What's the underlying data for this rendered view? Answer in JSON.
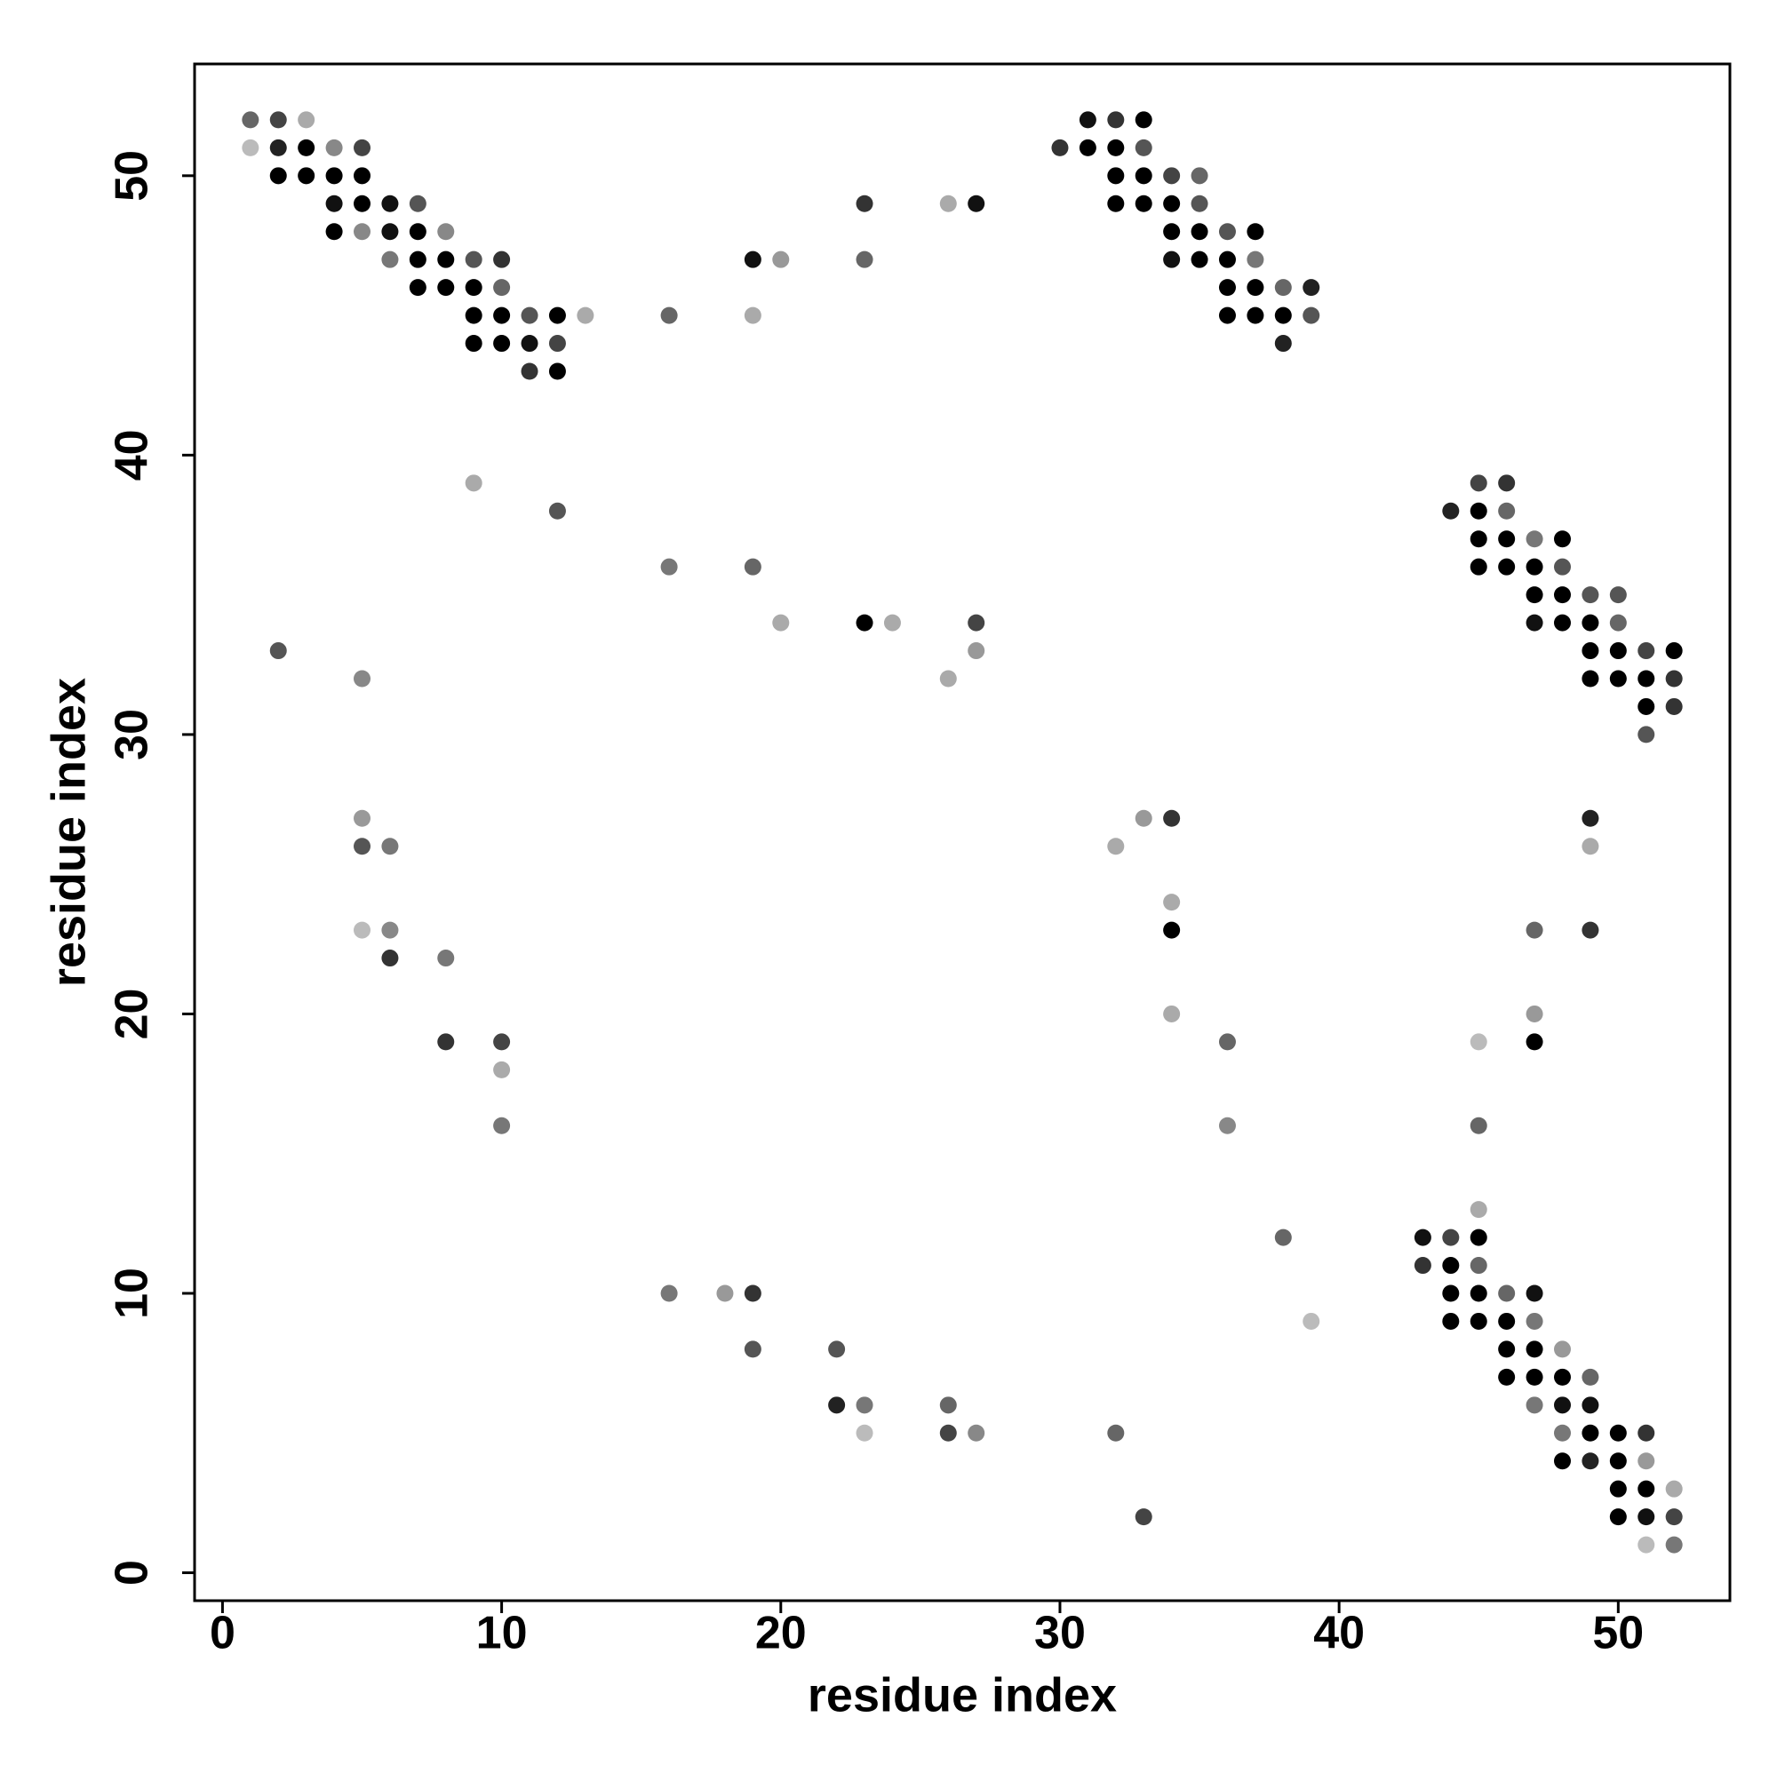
{
  "chart_data": {
    "type": "scatter",
    "xlabel": "residue index",
    "ylabel": "residue index",
    "xlim": [
      -1,
      54
    ],
    "ylim": [
      -1,
      54
    ],
    "xticks": [
      0,
      10,
      20,
      30,
      40,
      50
    ],
    "yticks": [
      0,
      10,
      20,
      30,
      40,
      50
    ],
    "x": [
      1,
      2,
      3,
      31,
      32,
      33,
      1,
      2,
      3,
      4,
      5,
      30,
      31,
      32,
      33,
      2,
      3,
      4,
      5,
      32,
      33,
      34,
      35,
      4,
      5,
      6,
      7,
      23,
      26,
      27,
      32,
      33,
      34,
      35,
      4,
      5,
      6,
      7,
      8,
      34,
      35,
      36,
      37,
      6,
      7,
      8,
      9,
      10,
      19,
      20,
      23,
      34,
      35,
      36,
      37,
      7,
      8,
      9,
      10,
      36,
      37,
      38,
      39,
      9,
      10,
      11,
      12,
      13,
      16,
      19,
      36,
      37,
      38,
      39,
      9,
      10,
      11,
      12,
      38,
      11,
      12,
      9,
      45,
      46,
      12,
      44,
      45,
      46,
      45,
      46,
      47,
      48,
      16,
      19,
      45,
      46,
      47,
      48,
      47,
      48,
      49,
      50,
      20,
      23,
      24,
      27,
      47,
      48,
      49,
      50,
      2,
      27,
      49,
      50,
      51,
      52,
      5,
      26,
      49,
      50,
      51,
      52,
      51,
      52,
      51,
      5,
      33,
      34,
      49,
      5,
      6,
      32,
      49,
      34,
      5,
      6,
      34,
      47,
      49,
      6,
      8,
      34,
      47,
      8,
      10,
      36,
      45,
      47,
      10,
      10,
      36,
      45,
      45,
      38,
      43,
      44,
      45,
      43,
      44,
      45,
      16,
      18,
      19,
      44,
      45,
      46,
      47,
      39,
      44,
      45,
      46,
      47,
      19,
      22,
      46,
      47,
      48,
      46,
      47,
      48,
      49,
      22,
      23,
      26,
      47,
      48,
      49,
      23,
      26,
      27,
      32,
      48,
      49,
      50,
      51,
      48,
      49,
      50,
      51,
      50,
      51,
      52,
      33,
      50,
      51,
      52,
      51,
      52
    ],
    "values": [
      52,
      52,
      52,
      52,
      52,
      52,
      51,
      51,
      51,
      51,
      51,
      51,
      51,
      51,
      51,
      50,
      50,
      50,
      50,
      50,
      50,
      50,
      50,
      49,
      49,
      49,
      49,
      49,
      49,
      49,
      49,
      49,
      49,
      49,
      48,
      48,
      48,
      48,
      48,
      48,
      48,
      48,
      48,
      47,
      47,
      47,
      47,
      47,
      47,
      47,
      47,
      47,
      47,
      47,
      47,
      46,
      46,
      46,
      46,
      46,
      46,
      46,
      46,
      45,
      45,
      45,
      45,
      45,
      45,
      45,
      45,
      45,
      45,
      45,
      44,
      44,
      44,
      44,
      44,
      43,
      43,
      39,
      39,
      39,
      38,
      38,
      38,
      38,
      37,
      37,
      37,
      37,
      36,
      36,
      36,
      36,
      36,
      36,
      35,
      35,
      35,
      35,
      34,
      34,
      34,
      34,
      34,
      34,
      34,
      34,
      33,
      33,
      33,
      33,
      33,
      33,
      32,
      32,
      32,
      32,
      32,
      32,
      31,
      31,
      30,
      27,
      27,
      27,
      27,
      26,
      26,
      26,
      26,
      24,
      23,
      23,
      23,
      23,
      23,
      22,
      22,
      20,
      20,
      19,
      19,
      19,
      19,
      19,
      18,
      16,
      16,
      16,
      13,
      12,
      12,
      12,
      12,
      11,
      11,
      11,
      10,
      10,
      10,
      10,
      10,
      10,
      10,
      9,
      9,
      9,
      9,
      9,
      8,
      8,
      8,
      8,
      8,
      7,
      7,
      7,
      7,
      6,
      6,
      6,
      6,
      6,
      6,
      5,
      5,
      5,
      5,
      5,
      5,
      5,
      5,
      4,
      4,
      4,
      4,
      3,
      3,
      3,
      2,
      2,
      2,
      2,
      1,
      1
    ],
    "colors": [
      "#666",
      "#444",
      "#aaa",
      "#111",
      "#333",
      "#000",
      "#bbb",
      "#222",
      "#000",
      "#888",
      "#444",
      "#333",
      "#000",
      "#000",
      "#555",
      "#000",
      "#000",
      "#000",
      "#000",
      "#000",
      "#000",
      "#444",
      "#666",
      "#111",
      "#000",
      "#111",
      "#555",
      "#333",
      "#aaa",
      "#111",
      "#000",
      "#000",
      "#000",
      "#555",
      "#000",
      "#888",
      "#111",
      "#000",
      "#888",
      "#000",
      "#000",
      "#555",
      "#000",
      "#777",
      "#000",
      "#000",
      "#555",
      "#333",
      "#111",
      "#999",
      "#666",
      "#111",
      "#000",
      "#000",
      "#777",
      "#000",
      "#000",
      "#000",
      "#666",
      "#000",
      "#000",
      "#666",
      "#222",
      "#000",
      "#000",
      "#555",
      "#000",
      "#aaa",
      "#666",
      "#aaa",
      "#000",
      "#000",
      "#000",
      "#555",
      "#000",
      "#000",
      "#111",
      "#444",
      "#222",
      "#333",
      "#000",
      "#aaa",
      "#444",
      "#333",
      "#555",
      "#222",
      "#000",
      "#666",
      "#000",
      "#000",
      "#777",
      "#000",
      "#777",
      "#666",
      "#000",
      "#000",
      "#000",
      "#555",
      "#000",
      "#000",
      "#555",
      "#555",
      "#aaa",
      "#000",
      "#aaa",
      "#444",
      "#111",
      "#000",
      "#000",
      "#666",
      "#555",
      "#999",
      "#000",
      "#000",
      "#444",
      "#000",
      "#888",
      "#aaa",
      "#000",
      "#000",
      "#000",
      "#333",
      "#000",
      "#333",
      "#555",
      "#999",
      "#999",
      "#333",
      "#222",
      "#555",
      "#777",
      "#aaa",
      "#aaa",
      "#aaa",
      "#bbb",
      "#888",
      "#000",
      "#666",
      "#333",
      "#333",
      "#777",
      "#aaa",
      "#999",
      "#333",
      "#444",
      "#666",
      "#bbb",
      "#000",
      "#aaa",
      "#777",
      "#888",
      "#666",
      "#aaa",
      "#666",
      "#111",
      "#444",
      "#000",
      "#333",
      "#000",
      "#666",
      "#777",
      "#999",
      "#333",
      "#000",
      "#000",
      "#666",
      "#111",
      "#bbb",
      "#000",
      "#000",
      "#000",
      "#777",
      "#555",
      "#555",
      "#000",
      "#000",
      "#999",
      "#000",
      "#000",
      "#000",
      "#666",
      "#222",
      "#777",
      "#666",
      "#777",
      "#111",
      "#111",
      "#bbb",
      "#444",
      "#888",
      "#666",
      "#777",
      "#000",
      "#000",
      "#333",
      "#000",
      "#222",
      "#000",
      "#999",
      "#000",
      "#000",
      "#aaa",
      "#444",
      "#000",
      "#111",
      "#444",
      "#bbb",
      "#777"
    ]
  }
}
